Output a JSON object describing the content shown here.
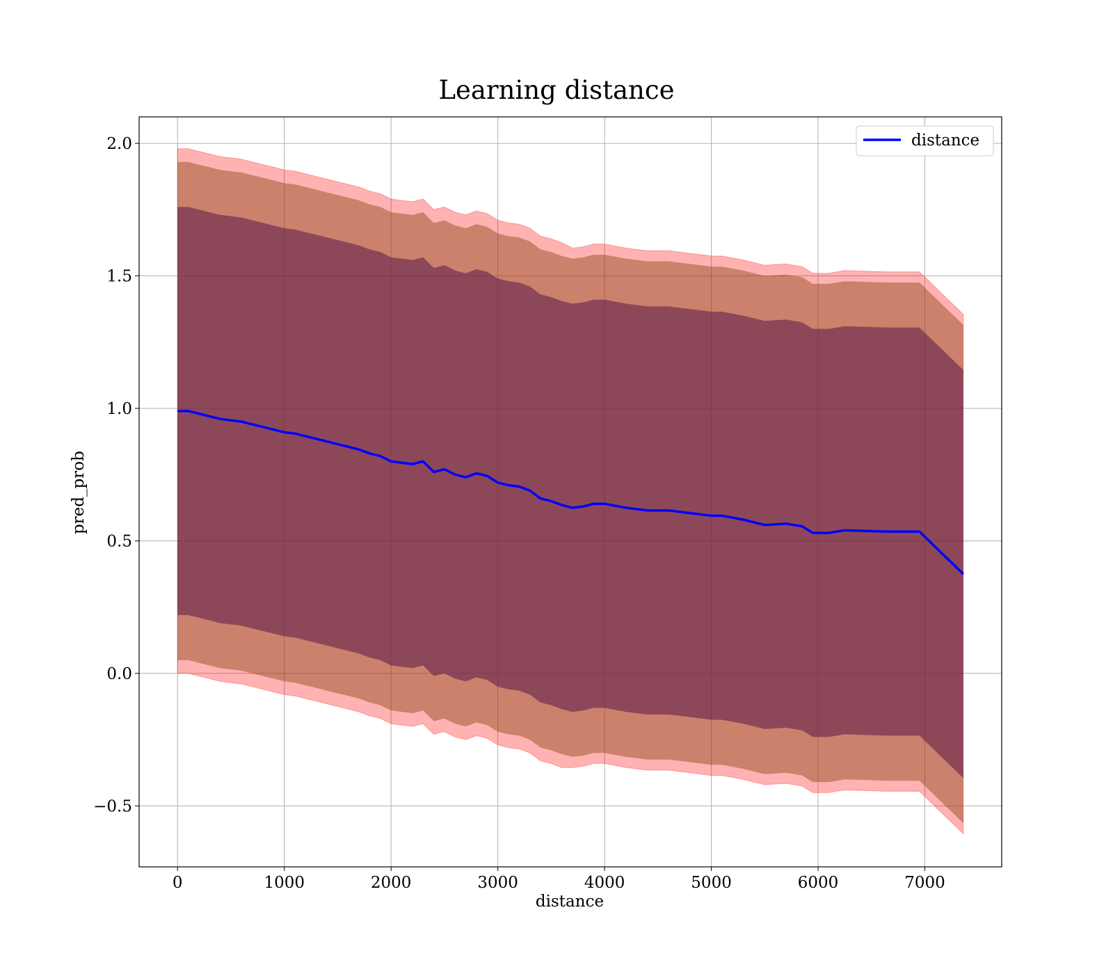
{
  "chart_data": {
    "type": "line",
    "title": "Learning distance",
    "xlabel": "distance",
    "ylabel": "pred_prob",
    "xlim": [
      -360,
      7720
    ],
    "ylim": [
      -0.73,
      2.1
    ],
    "xticks": [
      0,
      1000,
      2000,
      3000,
      4000,
      5000,
      6000,
      7000
    ],
    "xtick_labels": [
      "0",
      "1000",
      "2000",
      "3000",
      "4000",
      "5000",
      "6000",
      "7000"
    ],
    "yticks": [
      -0.5,
      0.0,
      0.5,
      1.0,
      1.5,
      2.0
    ],
    "ytick_labels": [
      "−0.5",
      "0.0",
      "0.5",
      "1.0",
      "1.5",
      "2.0"
    ],
    "grid": true,
    "legend": {
      "position": "top-right",
      "entries": [
        "distance"
      ]
    },
    "colors": {
      "line": "#0000ff",
      "band_outer": "#ff0000",
      "band_middle": "#8b4513",
      "band_inner": "#5a1a4a",
      "grid": "#b0b0b0"
    },
    "series": [
      {
        "name": "distance",
        "x": [
          0,
          100,
          200,
          300,
          400,
          500,
          600,
          700,
          800,
          900,
          1000,
          1100,
          1200,
          1300,
          1400,
          1500,
          1600,
          1700,
          1800,
          1900,
          2000,
          2100,
          2200,
          2300,
          2400,
          2500,
          2600,
          2700,
          2800,
          2900,
          3000,
          3100,
          3200,
          3300,
          3400,
          3500,
          3600,
          3700,
          3800,
          3900,
          4000,
          4200,
          4400,
          4600,
          4800,
          5000,
          5100,
          5300,
          5500,
          5700,
          5850,
          5950,
          6100,
          6250,
          6650,
          6950,
          7360
        ],
        "values": [
          0.99,
          0.99,
          0.98,
          0.97,
          0.96,
          0.955,
          0.95,
          0.94,
          0.93,
          0.92,
          0.91,
          0.905,
          0.895,
          0.885,
          0.875,
          0.865,
          0.855,
          0.845,
          0.83,
          0.82,
          0.8,
          0.795,
          0.79,
          0.8,
          0.76,
          0.77,
          0.75,
          0.74,
          0.755,
          0.745,
          0.72,
          0.71,
          0.705,
          0.69,
          0.66,
          0.65,
          0.635,
          0.625,
          0.63,
          0.64,
          0.64,
          0.625,
          0.615,
          0.615,
          0.605,
          0.595,
          0.595,
          0.58,
          0.56,
          0.565,
          0.555,
          0.53,
          0.53,
          0.54,
          0.535,
          0.535,
          0.375
        ]
      }
    ],
    "bands": [
      {
        "level": "outer",
        "offset_low": [
          0.99,
          0.99,
          0.99,
          0.99,
          0.99,
          0.99,
          0.99,
          0.99,
          0.99,
          0.99,
          0.99,
          0.99,
          0.99,
          0.99,
          0.99,
          0.99,
          0.99,
          0.99,
          0.99,
          0.99,
          0.99,
          0.99,
          0.99,
          0.99,
          0.99,
          0.99,
          0.99,
          0.99,
          0.99,
          0.99,
          0.99,
          0.99,
          0.99,
          0.99,
          0.99,
          0.99,
          0.99,
          0.98,
          0.98,
          0.98,
          0.98,
          0.98,
          0.98,
          0.98,
          0.98,
          0.98,
          0.98,
          0.98,
          0.98,
          0.98,
          0.98,
          0.98,
          0.98,
          0.98,
          0.98,
          0.98,
          0.98
        ]
      },
      {
        "level": "middle",
        "half_width": 0.94
      },
      {
        "level": "inner",
        "half_width": 0.77
      }
    ]
  }
}
